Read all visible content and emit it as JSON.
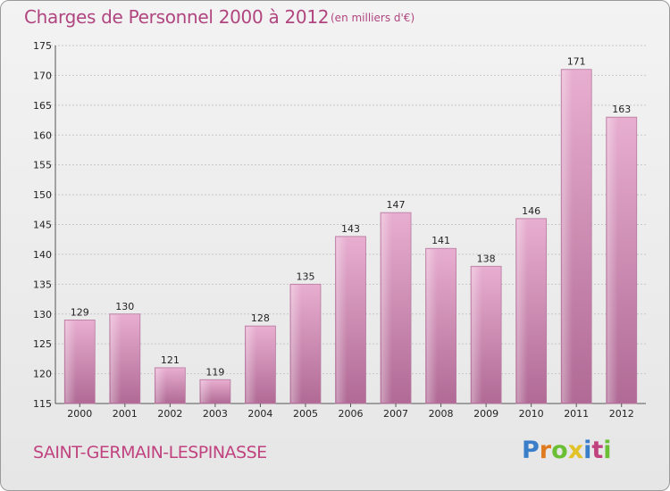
{
  "header": {
    "title": "Charges de Personnel 2000 à 2012",
    "subtitle": "(en milliers d'€)"
  },
  "footer": {
    "commune": "SAINT-GERMAIN-LESPINASSE",
    "logo_text": "Proxiti"
  },
  "colors": {
    "bar": "#d88ab3",
    "bar_light": "#e8aed0",
    "bar_dark": "#b06a95",
    "title": "#b0457f",
    "logo_letters": [
      "#3a7dc9",
      "#e07a1f",
      "#6bbf35",
      "#e2c227",
      "#3a7dc9",
      "#c0437f",
      "#6bbf35"
    ]
  },
  "chart_data": {
    "type": "bar",
    "categories": [
      "2000",
      "2001",
      "2002",
      "2003",
      "2004",
      "2005",
      "2006",
      "2007",
      "2008",
      "2009",
      "2010",
      "2011",
      "2012"
    ],
    "values": [
      129,
      130,
      121,
      119,
      128,
      135,
      143,
      147,
      141,
      138,
      146,
      171,
      163
    ],
    "title": "Charges de Personnel 2000 à 2012",
    "ylim": [
      115,
      175
    ],
    "yticks": [
      115,
      120,
      125,
      130,
      135,
      140,
      145,
      150,
      155,
      160,
      165,
      170,
      175
    ],
    "grid": true
  }
}
